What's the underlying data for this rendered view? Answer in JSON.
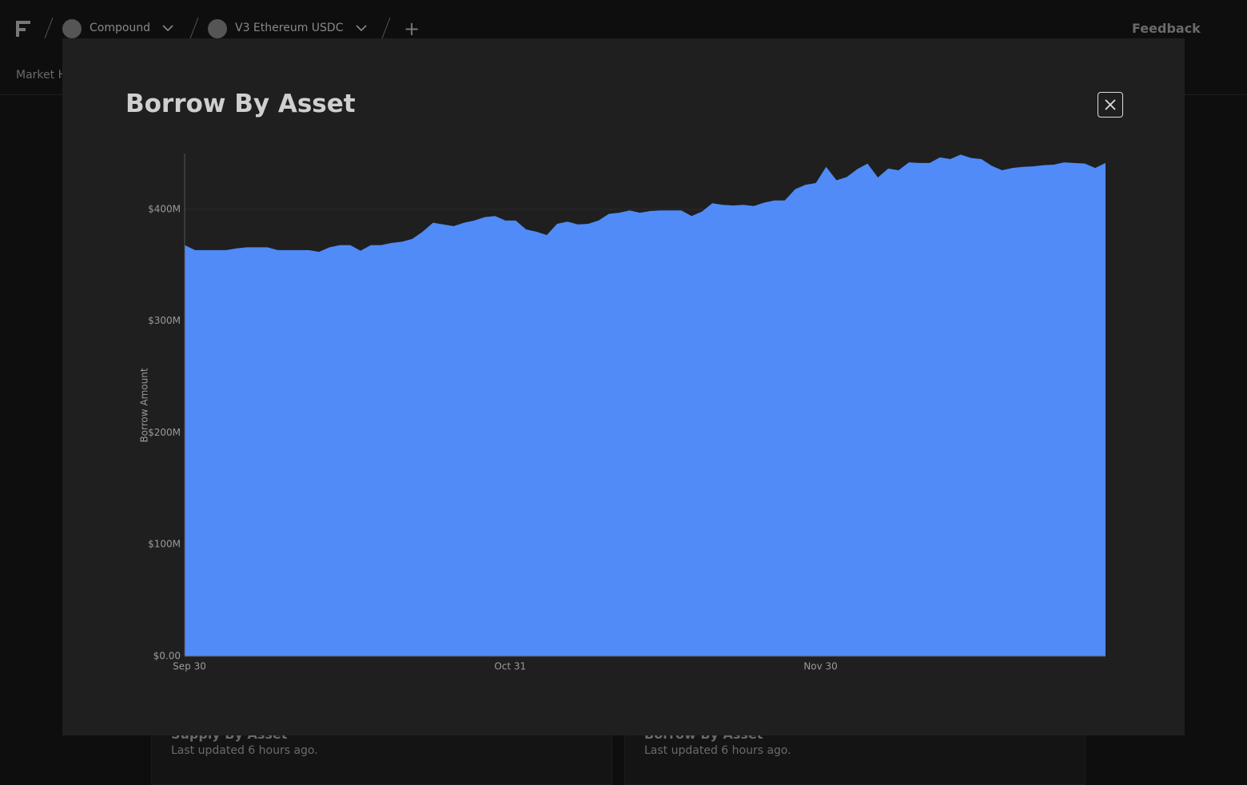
{
  "header": {
    "protocol": "Compound",
    "market": "V3 Ethereum USDC",
    "feedback": "Feedback",
    "tab": "Market H"
  },
  "cards": [
    {
      "title": "Supply By Asset",
      "updated": "Last updated 6 hours ago."
    },
    {
      "title": "Borrow By Asset",
      "updated": "Last updated 6 hours ago."
    }
  ],
  "modal": {
    "title": "Borrow By Asset"
  },
  "chart_data": {
    "type": "area",
    "ylabel": "Borrow Amount",
    "color": "#508bf8",
    "grid": true,
    "categories": [
      "Sep 30",
      null,
      null,
      null,
      null,
      null,
      null,
      null,
      null,
      null,
      null,
      null,
      null,
      null,
      null,
      null,
      null,
      null,
      null,
      null,
      null,
      null,
      null,
      null,
      null,
      null,
      null,
      null,
      null,
      null,
      null,
      "Oct 31",
      null,
      null,
      null,
      null,
      null,
      null,
      null,
      null,
      null,
      null,
      null,
      null,
      null,
      null,
      null,
      null,
      null,
      null,
      null,
      null,
      null,
      null,
      null,
      null,
      null,
      null,
      null,
      null,
      null,
      "Nov 30",
      null,
      null,
      null,
      null,
      null,
      null,
      null,
      null,
      null,
      null,
      null,
      null,
      null,
      null,
      null,
      null,
      null,
      null,
      null,
      null,
      null,
      null,
      null,
      null,
      null,
      null,
      null,
      null
    ],
    "values": [
      368000000,
      363500000,
      363500000,
      363500000,
      363500000,
      365000000,
      366000000,
      366000000,
      366000000,
      363500000,
      363500000,
      363500000,
      363500000,
      362000000,
      366000000,
      368000000,
      368000000,
      363000000,
      368000000,
      368000000,
      370000000,
      371000000,
      373500000,
      380000000,
      388000000,
      386500000,
      385000000,
      388000000,
      390000000,
      393000000,
      394000000,
      390000000,
      390000000,
      382000000,
      380000000,
      377000000,
      387000000,
      389000000,
      386500000,
      387000000,
      390000000,
      396000000,
      397000000,
      399000000,
      397000000,
      398500000,
      399000000,
      399000000,
      399000000,
      394000000,
      398000000,
      405500000,
      404000000,
      403500000,
      404000000,
      403000000,
      406000000,
      408000000,
      408000000,
      418000000,
      422000000,
      423500000,
      438000000,
      426000000,
      429000000,
      436000000,
      441000000,
      428500000,
      436500000,
      435000000,
      442000000,
      441500000,
      441500000,
      446500000,
      445000000,
      449000000,
      446000000,
      445000000,
      439000000,
      435000000,
      437000000,
      438000000,
      438500000,
      439500000,
      440000000,
      442000000,
      441500000,
      441000000,
      437000000,
      441500000
    ],
    "ylim": [
      0,
      450000000
    ],
    "yticks": [
      {
        "value": 0,
        "label": "$0.00"
      },
      {
        "value": 100000000,
        "label": "$100M"
      },
      {
        "value": 200000000,
        "label": "$200M"
      },
      {
        "value": 300000000,
        "label": "$300M"
      },
      {
        "value": 400000000,
        "label": "$400M"
      }
    ]
  }
}
